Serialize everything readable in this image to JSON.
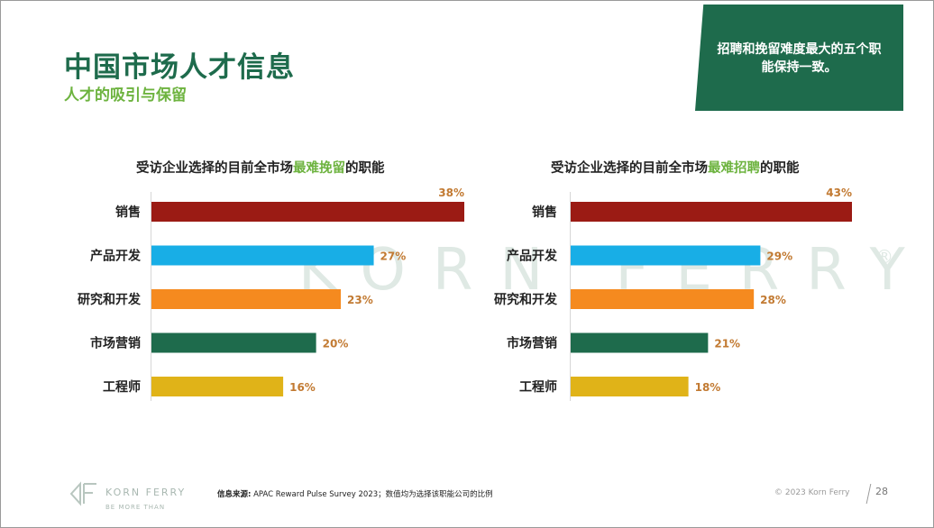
{
  "header": {
    "title": "中国市场人才信息",
    "subtitle": "人才的吸引与保留"
  },
  "callout": {
    "text": "招聘和挽留难度最大的五个职能保持一致。"
  },
  "watermark": {
    "text": "KORN FERRY",
    "reg": "®"
  },
  "chart_data": [
    {
      "type": "bar",
      "orientation": "horizontal",
      "title_prefix": "受访企业选择的目前全市场",
      "title_highlight": "最难挽留",
      "title_suffix": "的职能",
      "categories": [
        "销售",
        "产品开发",
        "研究和开发",
        "市场营销",
        "工程师"
      ],
      "values": [
        38,
        27,
        23,
        20,
        16
      ],
      "labels": [
        "38%",
        "27%",
        "23%",
        "20%",
        "16%"
      ],
      "colors": [
        "#9b1b14",
        "#18aee6",
        "#f58a1f",
        "#1e6b4c",
        "#e0b318"
      ],
      "xlim": [
        0,
        38
      ],
      "unit": "%",
      "grid": false
    },
    {
      "type": "bar",
      "orientation": "horizontal",
      "title_prefix": "受访企业选择的目前全市场",
      "title_highlight": "最难招聘",
      "title_suffix": "的职能",
      "categories": [
        "销售",
        "产品开发",
        "研究和开发",
        "市场营销",
        "工程师"
      ],
      "values": [
        43,
        29,
        28,
        21,
        18
      ],
      "labels": [
        "43%",
        "29%",
        "28%",
        "21%",
        "18%"
      ],
      "colors": [
        "#9b1b14",
        "#18aee6",
        "#f58a1f",
        "#1e6b4c",
        "#e0b318"
      ],
      "xlim": [
        0,
        43
      ],
      "unit": "%",
      "grid": false
    }
  ],
  "footer": {
    "brand": "KORN FERRY",
    "tagline": "BE MORE THAN",
    "source_label": "信息来源:",
    "source_text": " APAC Reward Pulse Survey 2023；数值均为选择该职能公司的比例",
    "copyright": "© 2023 Korn Ferry",
    "page": "28"
  }
}
